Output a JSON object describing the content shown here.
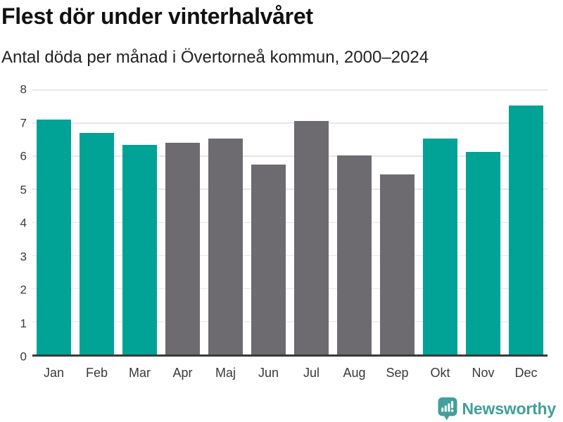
{
  "header": {
    "title": "Flest dör under vinterhalvåret",
    "subtitle": "Antal döda per månad i Övertorneå kommun, 2000–2024"
  },
  "chart_data": {
    "type": "bar",
    "title": "Flest dör under vinterhalvåret",
    "subtitle": "Antal döda per månad i Övertorneå kommun, 2000–2024",
    "categories": [
      "Jan",
      "Feb",
      "Mar",
      "Apr",
      "Maj",
      "Jun",
      "Jul",
      "Aug",
      "Sep",
      "Okt",
      "Nov",
      "Dec"
    ],
    "values": [
      7.08,
      6.68,
      6.32,
      6.38,
      6.52,
      5.72,
      7.04,
      6.0,
      5.44,
      6.52,
      6.12,
      7.52
    ],
    "bar_colors": [
      "teal",
      "teal",
      "teal",
      "gray",
      "gray",
      "gray",
      "gray",
      "gray",
      "gray",
      "teal",
      "teal",
      "teal"
    ],
    "xlabel": "",
    "ylabel": "",
    "ylim": [
      0,
      8
    ],
    "yticks": [
      0,
      1,
      2,
      3,
      4,
      5,
      6,
      7,
      8
    ],
    "grid": "horizontal",
    "legend": "none"
  },
  "colors": {
    "highlight": "#00A396",
    "muted": "#6D6B70",
    "gridline": "#E8E8E8",
    "axis": "#3A3A3A",
    "title_text": "#111111",
    "subtitle_text": "#222222",
    "tick_text": "#3A3A3A",
    "brand": "#41A09A"
  },
  "footer": {
    "brand_name": "Newsworthy",
    "logo_icon": "bar-chart-speech-bubble-icon"
  }
}
